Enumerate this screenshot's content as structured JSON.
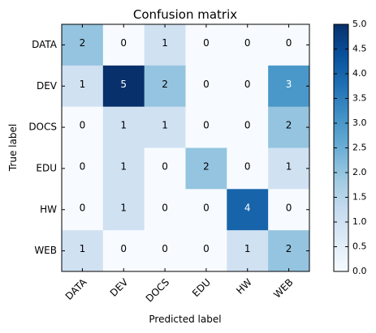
{
  "chart_data": {
    "type": "heatmap",
    "title": "Confusion matrix",
    "xlabel": "Predicted label",
    "ylabel": "True label",
    "x_categories": [
      "DATA",
      "DEV",
      "DOCS",
      "EDU",
      "HW",
      "WEB"
    ],
    "y_categories": [
      "DATA",
      "DEV",
      "DOCS",
      "EDU",
      "HW",
      "WEB"
    ],
    "values": [
      [
        2,
        0,
        1,
        0,
        0,
        0
      ],
      [
        1,
        5,
        2,
        0,
        0,
        3
      ],
      [
        0,
        1,
        1,
        0,
        0,
        2
      ],
      [
        0,
        1,
        0,
        2,
        0,
        1
      ],
      [
        0,
        1,
        0,
        0,
        4,
        0
      ],
      [
        1,
        0,
        0,
        0,
        1,
        2
      ]
    ],
    "colorbar": {
      "range": [
        0,
        5
      ],
      "ticks": [
        "0.0",
        "0.5",
        "1.0",
        "1.5",
        "2.0",
        "2.5",
        "3.0",
        "3.5",
        "4.0",
        "4.5",
        "5.0"
      ]
    },
    "colormap": "Blues",
    "text_threshold": 2.5
  }
}
